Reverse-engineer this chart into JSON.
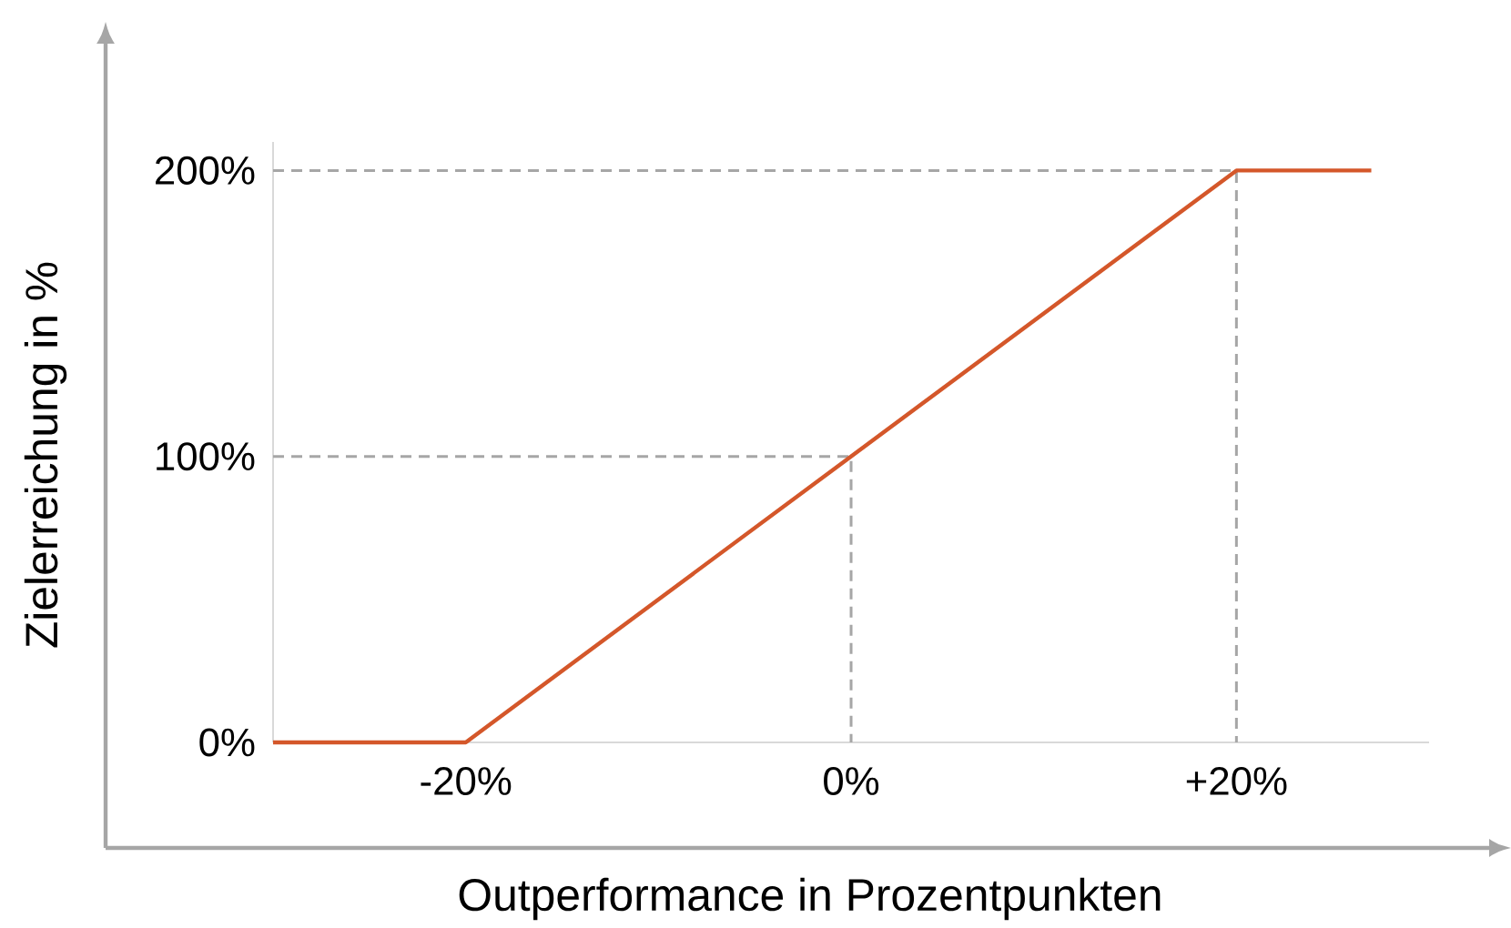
{
  "chart_data": {
    "type": "line",
    "xlabel": "Outperformance in Prozentpunkten",
    "ylabel": "Zielerreichung in %",
    "x": [
      -30,
      -20,
      20,
      27
    ],
    "xlim": [
      -30,
      30
    ],
    "ylim": [
      0,
      210
    ],
    "xticks": [
      {
        "value": -20,
        "label": "-20%"
      },
      {
        "value": 0,
        "label": "0%"
      },
      {
        "value": 20,
        "label": "+20%"
      }
    ],
    "yticks": [
      {
        "value": 0,
        "label": "0%"
      },
      {
        "value": 100,
        "label": "100%"
      },
      {
        "value": 200,
        "label": "200%"
      }
    ],
    "marker": "none",
    "line_style": "solid",
    "series": [
      {
        "color": "#d4572a",
        "values": [
          0,
          0,
          200,
          200
        ]
      },
      {
        "color": "#a6a6a6",
        "line_style": "dashed",
        "x": [
          -30,
          0,
          0
        ],
        "values": [
          100,
          100,
          0
        ]
      },
      {
        "color": "#a6a6a6",
        "line_style": "dashed",
        "x": [
          -30,
          20,
          20
        ],
        "values": [
          200,
          200,
          0
        ]
      }
    ]
  }
}
